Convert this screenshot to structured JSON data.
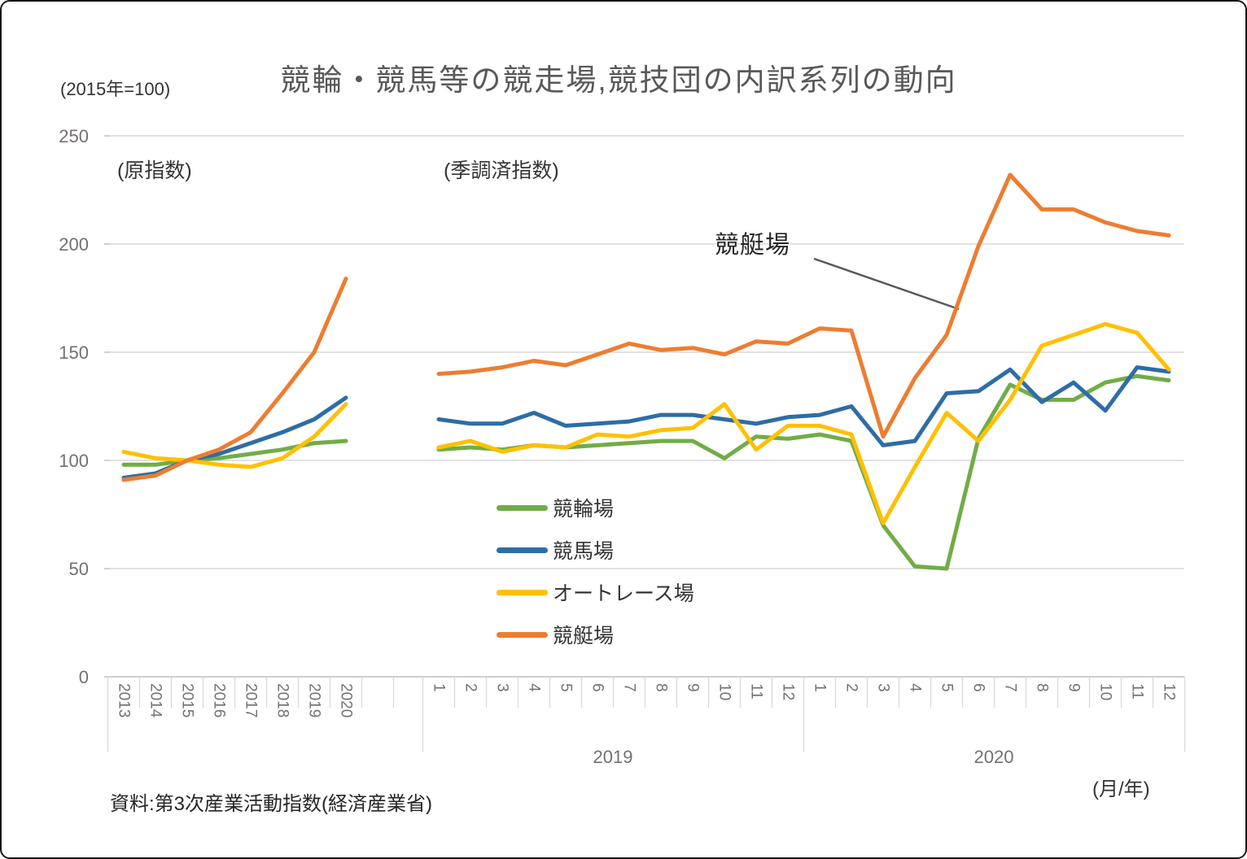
{
  "header": {
    "unit_note": "(2015年=100)",
    "title": "競輪・競馬等の競走場,競技団の内訳系列の動向"
  },
  "annotation": {
    "label": "競艇場"
  },
  "legend": {
    "items": [
      {
        "label": "競輪場",
        "color": "#70AD47"
      },
      {
        "label": "競馬場",
        "color": "#2E6DA4"
      },
      {
        "label": "オートレース場",
        "color": "#FFC000"
      },
      {
        "label": "競艇場",
        "color": "#ED7D31"
      }
    ]
  },
  "footer": {
    "source": "資料:第3次産業活動指数(経済産業省)",
    "x_unit": "(月/年)"
  },
  "chart_data": {
    "type": "line",
    "title": "競輪・競馬等の競走場,競技団の内訳系列の動向",
    "index_note": "(2015年=100)",
    "y_axis": {
      "min": 0,
      "max": 250,
      "ticks": [
        0,
        50,
        100,
        150,
        200,
        250
      ],
      "gridlines": true
    },
    "sections": [
      {
        "key": "annual",
        "label": "(原指数)",
        "x_labels": [
          "2013",
          "2014",
          "2015",
          "2016",
          "2017",
          "2018",
          "2019",
          "2020"
        ],
        "series": [
          {
            "key": "keirin",
            "name": "競輪場",
            "color": "#70AD47",
            "values": [
              98,
              98,
              100,
              101,
              103,
              105,
              108,
              109
            ]
          },
          {
            "key": "keiba",
            "name": "競馬場",
            "color": "#2E6DA4",
            "values": [
              92,
              94,
              100,
              103,
              108,
              113,
              119,
              129
            ]
          },
          {
            "key": "autorace",
            "name": "オートレース場",
            "color": "#FFC000",
            "values": [
              104,
              101,
              100,
              98,
              97,
              101,
              111,
              126
            ]
          },
          {
            "key": "kyotei",
            "name": "競艇場",
            "color": "#ED7D31",
            "values": [
              91,
              93,
              100,
              105,
              113,
              131,
              150,
              184
            ]
          }
        ]
      },
      {
        "key": "monthly",
        "label": "(季調済指数)",
        "x_labels": [
          "1",
          "2",
          "3",
          "4",
          "5",
          "6",
          "7",
          "8",
          "9",
          "10",
          "11",
          "12",
          "1",
          "2",
          "3",
          "4",
          "5",
          "6",
          "7",
          "8",
          "9",
          "10",
          "11",
          "12"
        ],
        "groups": [
          {
            "label": "2019"
          },
          {
            "label": "2020"
          }
        ],
        "series": [
          {
            "key": "keirin",
            "name": "競輪場",
            "color": "#70AD47",
            "values": [
              105,
              106,
              105,
              107,
              106,
              107,
              108,
              109,
              109,
              101,
              111,
              110,
              112,
              109,
              70,
              51,
              50,
              110,
              135,
              128,
              128,
              136,
              139,
              137
            ]
          },
          {
            "key": "keiba",
            "name": "競馬場",
            "color": "#2E6DA4",
            "values": [
              119,
              117,
              117,
              122,
              116,
              117,
              118,
              121,
              121,
              119,
              117,
              120,
              121,
              125,
              107,
              109,
              131,
              132,
              142,
              127,
              136,
              123,
              143,
              141
            ]
          },
          {
            "key": "autorace",
            "name": "オートレース場",
            "color": "#FFC000",
            "values": [
              106,
              109,
              104,
              107,
              106,
              112,
              111,
              114,
              115,
              126,
              105,
              116,
              116,
              112,
              71,
              97,
              122,
              109,
              128,
              153,
              158,
              163,
              159,
              142
            ]
          },
          {
            "key": "kyotei",
            "name": "競艇場",
            "color": "#ED7D31",
            "values": [
              140,
              141,
              143,
              146,
              144,
              149,
              154,
              151,
              152,
              149,
              155,
              154,
              161,
              160,
              111,
              138,
              158,
              199,
              232,
              216,
              216,
              210,
              206,
              204
            ]
          }
        ]
      }
    ]
  }
}
